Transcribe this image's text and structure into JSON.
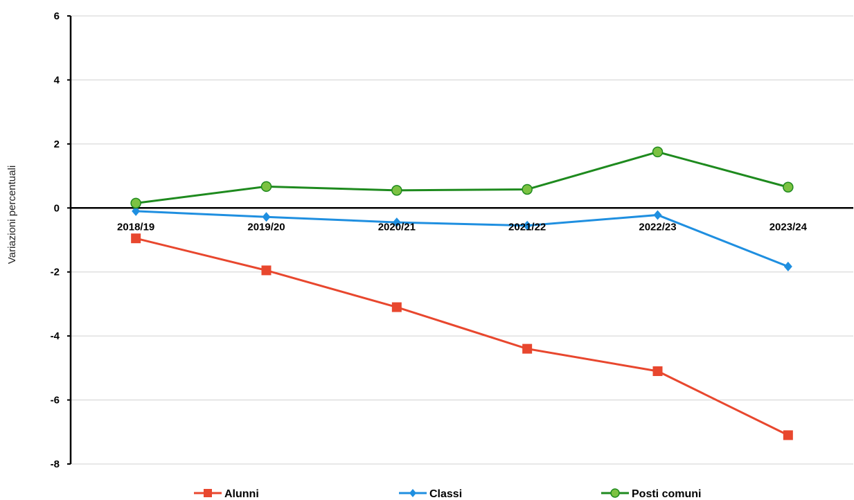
{
  "chart_data": {
    "type": "line",
    "categories": [
      "2018/19",
      "2019/20",
      "2020/21",
      "2021/22",
      "2022/23",
      "2023/24"
    ],
    "ylabel": "Variazioni percentuali",
    "ylim": [
      -8,
      6
    ],
    "yticks": [
      -8,
      -6,
      -4,
      -2,
      0,
      2,
      4,
      6
    ],
    "grid": true,
    "legend_position": "bottom",
    "series": [
      {
        "name": "Alunni",
        "color": "#e8472e",
        "marker": "square",
        "values": [
          -0.95,
          -1.95,
          -3.1,
          -4.4,
          -5.1,
          -7.1
        ]
      },
      {
        "name": "Classi",
        "color": "#1f8fe0",
        "marker": "diamond",
        "values": [
          -0.1,
          -0.28,
          -0.45,
          -0.55,
          -0.22,
          -1.83
        ]
      },
      {
        "name": "Posti comuni",
        "color": "#1e8a1e",
        "marker": "circle",
        "values": [
          0.15,
          0.67,
          0.55,
          0.58,
          1.75,
          0.65
        ]
      }
    ]
  }
}
